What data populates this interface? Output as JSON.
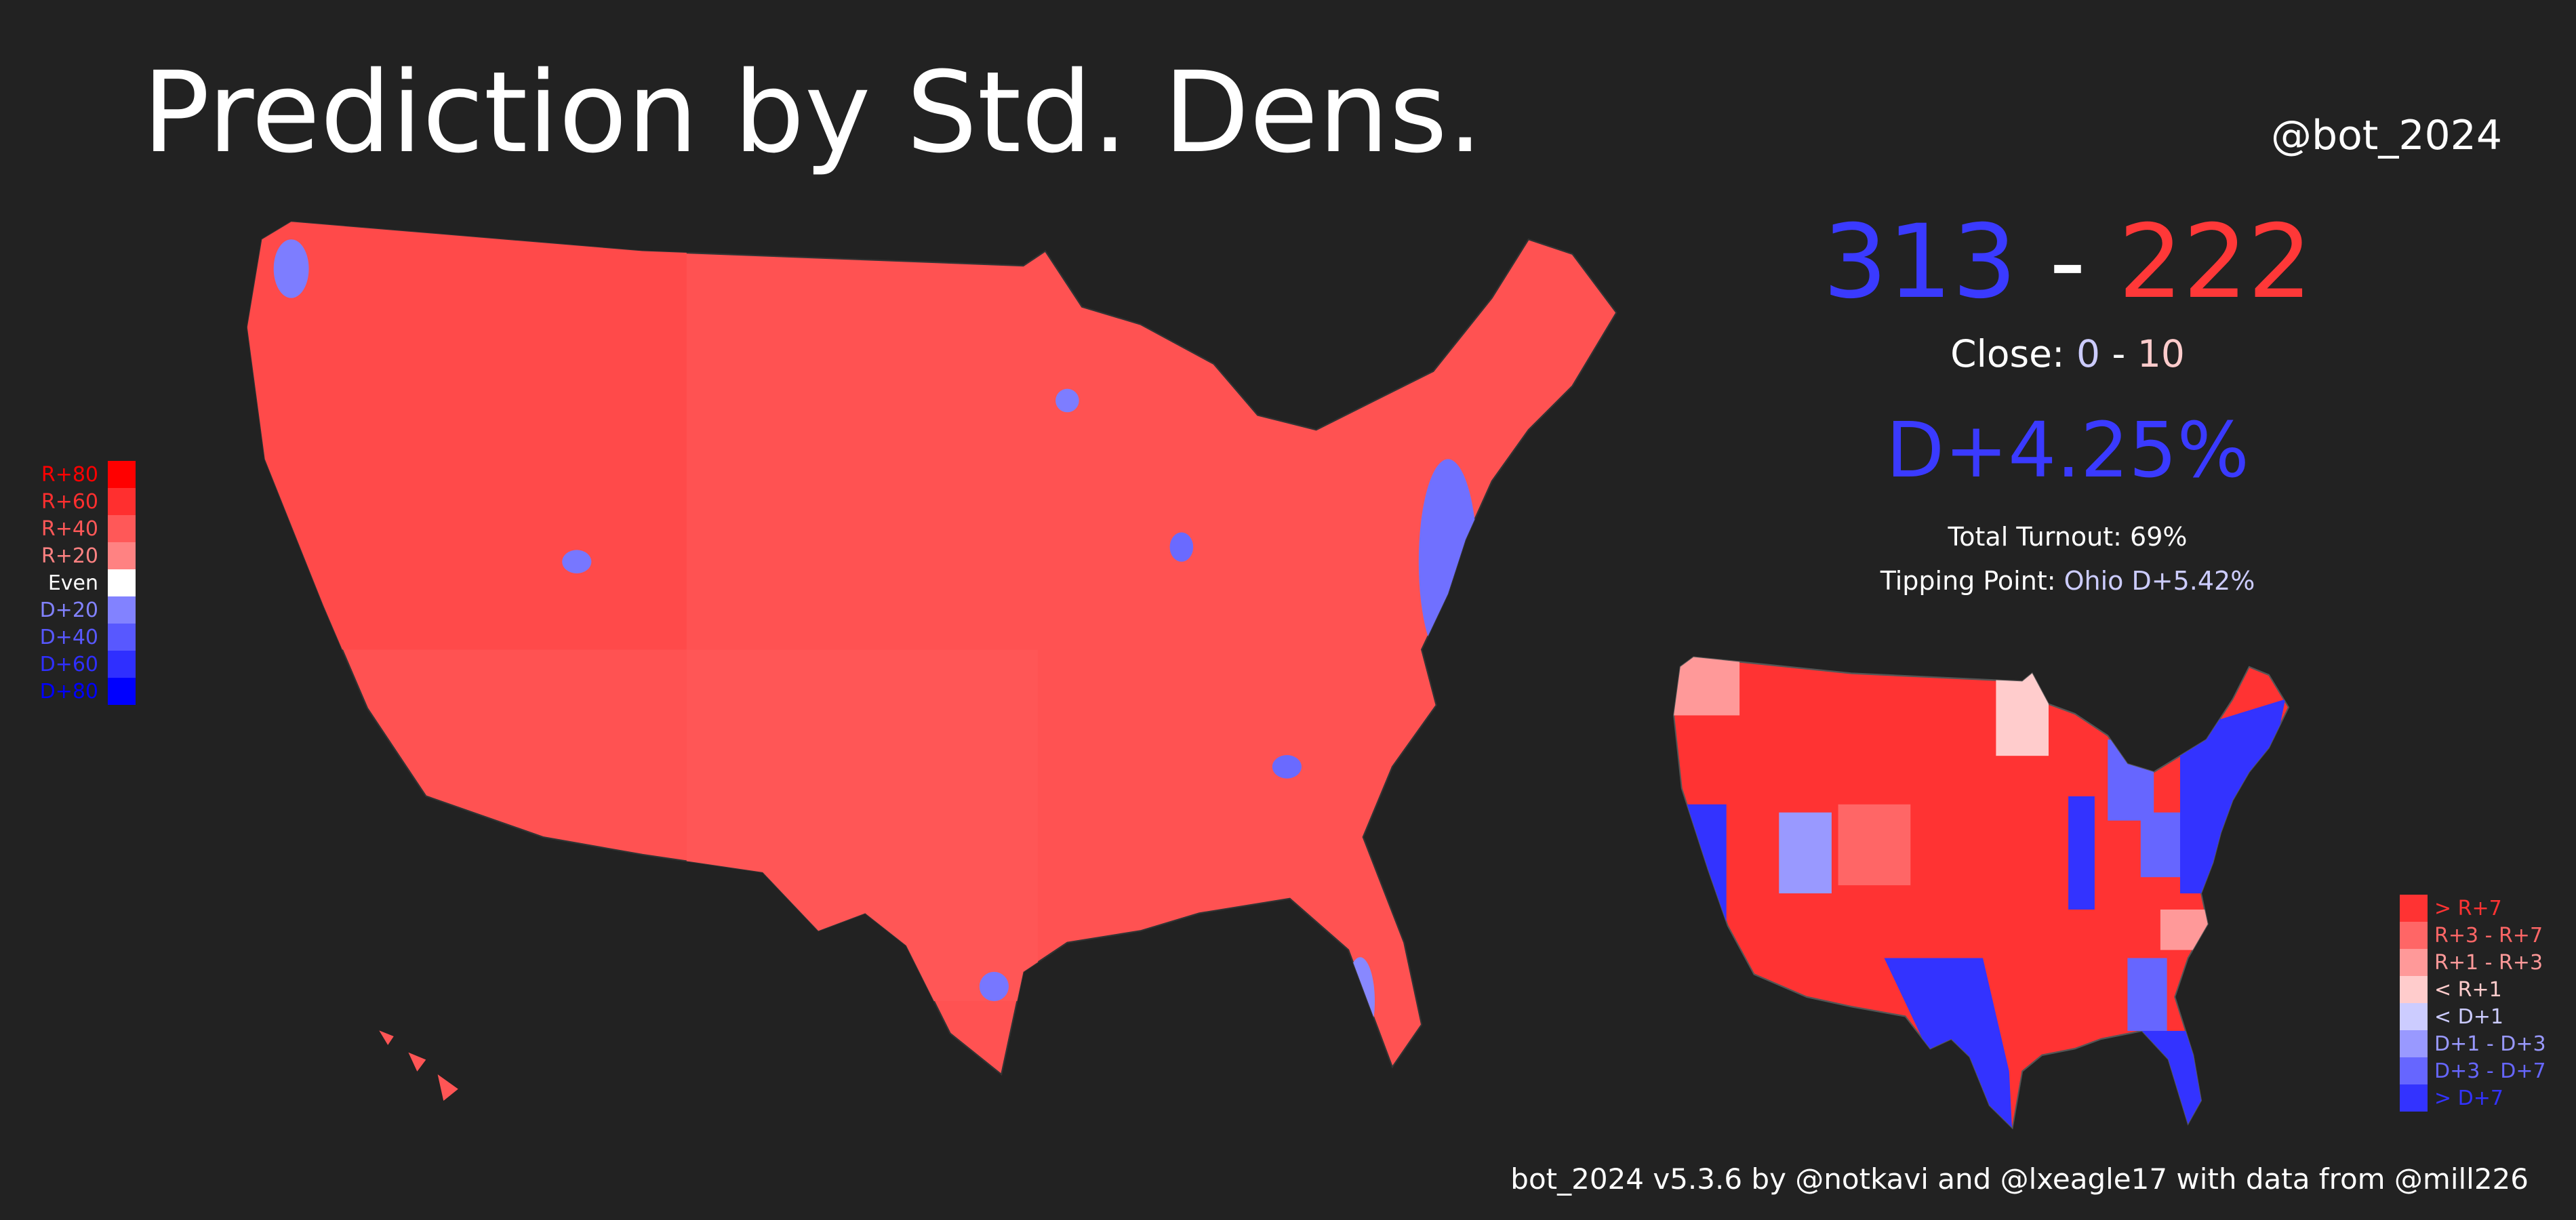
{
  "header": {
    "title": "Prediction by Std. Dens.",
    "handle": "@bot_2024"
  },
  "summary": {
    "dem_ev": "313",
    "separator": " - ",
    "rep_ev": "222",
    "close_label": "Close: ",
    "close_dem": "0",
    "close_sep": " - ",
    "close_rep": "10",
    "popular_margin": "D+4.25%",
    "turnout": "Total Turnout: 69%",
    "tipping_label": "Tipping Point: ",
    "tipping_value": "Ohio D+5.42%"
  },
  "county_legend": [
    {
      "label": "R+80",
      "color": "#ff0000"
    },
    {
      "label": "R+60",
      "color": "#ff2f2f"
    },
    {
      "label": "R+40",
      "color": "#ff5858"
    },
    {
      "label": "R+20",
      "color": "#ff8282"
    },
    {
      "label": "Even",
      "color": "#ffffff"
    },
    {
      "label": "D+20",
      "color": "#8282ff"
    },
    {
      "label": "D+40",
      "color": "#5858ff"
    },
    {
      "label": "D+60",
      "color": "#2f2fff"
    },
    {
      "label": "D+80",
      "color": "#0000ff"
    }
  ],
  "state_legend": [
    {
      "label": "> R+7",
      "color": "#ff3333"
    },
    {
      "label": "R+3 - R+7",
      "color": "#ff6666"
    },
    {
      "label": "R+1 - R+3",
      "color": "#ff9999"
    },
    {
      "label": "< R+1",
      "color": "#ffcccc"
    },
    {
      "label": "< D+1",
      "color": "#ccccff"
    },
    {
      "label": "D+1 - D+3",
      "color": "#9999ff"
    },
    {
      "label": "D+3 - D+7",
      "color": "#6666ff"
    },
    {
      "label": "> D+7",
      "color": "#3333ff"
    }
  ],
  "colors": {
    "dem": "#3a3aff",
    "rep": "#ff3838",
    "background": "#222222"
  },
  "footer": "bot_2024 v5.3.6 by @notkavi and @lxeagle17 with data from @mill226"
}
